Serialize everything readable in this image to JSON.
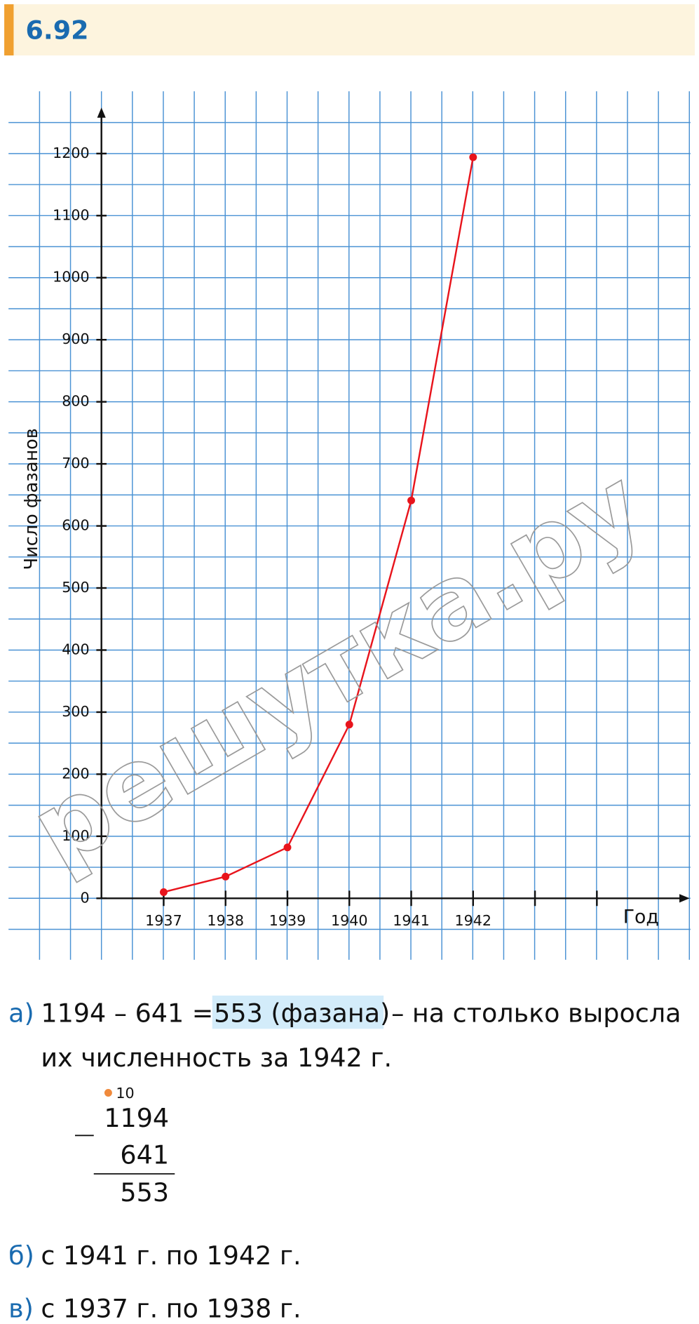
{
  "header": {
    "title": "6.92"
  },
  "chart_data": {
    "type": "line",
    "y_label": "Число фазанов",
    "x_label": "Год",
    "watermark": "решутка.ру",
    "categories": [
      "1937",
      "1938",
      "1939",
      "1940",
      "1941",
      "1942",
      null,
      null
    ],
    "values": [
      10,
      35,
      82,
      280,
      641,
      1194,
      null,
      null
    ],
    "color": "#e8141c",
    "ylim": [
      0,
      1200
    ],
    "yticks": [
      0,
      100,
      200,
      300,
      400,
      500,
      600,
      700,
      800,
      900,
      1000,
      1100,
      1200
    ],
    "grid": true
  },
  "answers": {
    "a": {
      "marker": "а)",
      "expression": "1194 – 641 =",
      "highlight": "553 (фазана)",
      "rest": "– на столько выросла",
      "line2": "их численность за 1942 г."
    },
    "column": {
      "carry": "10",
      "minuend": "1194",
      "subtrahend": "641",
      "difference": "553"
    },
    "b": {
      "marker": "б)",
      "text": "с 1941 г. по 1942 г."
    },
    "c": {
      "marker": "в)",
      "text": "с 1937 г. по 1938 г."
    }
  }
}
